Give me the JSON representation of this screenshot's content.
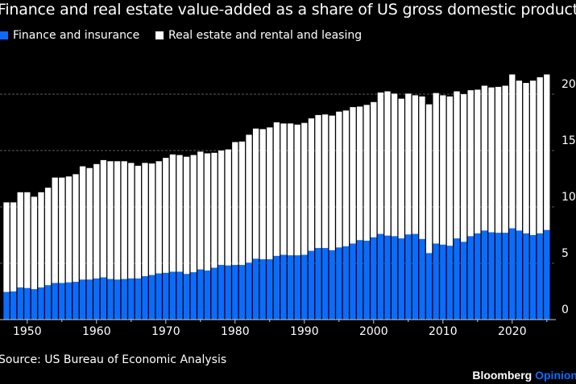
{
  "chart_data": {
    "type": "bar",
    "stacked": true,
    "title": "Finance and real estate value-added as a share of US gross domestic product",
    "xlabel": "",
    "ylabel": "",
    "ylim": [
      0,
      22
    ],
    "y_ticks": [
      "0",
      "5",
      "10",
      "15",
      "20%"
    ],
    "x_ticks": [
      "1950",
      "1960",
      "1970",
      "1980",
      "1990",
      "2000",
      "2010",
      "2020"
    ],
    "grid": true,
    "legend_placement": "top-left",
    "x": [
      1947,
      1948,
      1949,
      1950,
      1951,
      1952,
      1953,
      1954,
      1955,
      1956,
      1957,
      1958,
      1959,
      1960,
      1961,
      1962,
      1963,
      1964,
      1965,
      1966,
      1967,
      1968,
      1969,
      1970,
      1971,
      1972,
      1973,
      1974,
      1975,
      1976,
      1977,
      1978,
      1979,
      1980,
      1981,
      1982,
      1983,
      1984,
      1985,
      1986,
      1987,
      1988,
      1989,
      1990,
      1991,
      1992,
      1993,
      1994,
      1995,
      1996,
      1997,
      1998,
      1999,
      2000,
      2001,
      2002,
      2003,
      2004,
      2005,
      2006,
      2007,
      2008,
      2009,
      2010,
      2011,
      2012,
      2013,
      2014,
      2015,
      2016,
      2017,
      2018,
      2019,
      2020,
      2021,
      2022,
      2023,
      2024,
      2025
    ],
    "series": [
      {
        "name": "Finance and insurance",
        "color": "#0A6CFF",
        "values": [
          2.45,
          2.5,
          2.85,
          2.8,
          2.7,
          2.85,
          3.05,
          3.25,
          3.25,
          3.3,
          3.35,
          3.55,
          3.55,
          3.65,
          3.75,
          3.6,
          3.55,
          3.6,
          3.65,
          3.65,
          3.85,
          3.95,
          4.1,
          4.15,
          4.25,
          4.25,
          4.05,
          4.2,
          4.45,
          4.35,
          4.6,
          4.85,
          4.8,
          4.85,
          4.85,
          5.05,
          5.4,
          5.35,
          5.35,
          5.65,
          5.75,
          5.7,
          5.7,
          5.75,
          6.1,
          6.35,
          6.35,
          6.15,
          6.4,
          6.5,
          6.75,
          7.05,
          7.0,
          7.3,
          7.6,
          7.45,
          7.4,
          7.2,
          7.55,
          7.6,
          7.15,
          5.9,
          6.75,
          6.65,
          6.55,
          7.2,
          6.9,
          7.4,
          7.65,
          7.9,
          7.75,
          7.7,
          7.7,
          8.1,
          7.9,
          7.65,
          7.5,
          7.65,
          7.95
        ]
      },
      {
        "name": "Real estate and rental and leasing",
        "color": "#FFFFFF",
        "values": [
          7.95,
          7.9,
          8.45,
          8.5,
          8.2,
          8.45,
          8.65,
          9.35,
          9.35,
          9.4,
          9.55,
          10.05,
          9.9,
          10.15,
          10.4,
          10.45,
          10.5,
          10.45,
          10.25,
          10.0,
          10.05,
          9.9,
          9.95,
          10.2,
          10.4,
          10.35,
          10.4,
          10.4,
          10.45,
          10.4,
          10.2,
          10.15,
          10.3,
          10.9,
          10.95,
          11.35,
          11.55,
          11.55,
          11.7,
          11.85,
          11.65,
          11.7,
          11.6,
          11.7,
          11.75,
          11.8,
          11.85,
          11.95,
          12.05,
          12.05,
          12.1,
          11.85,
          12.05,
          12.0,
          12.55,
          12.8,
          12.65,
          12.4,
          12.5,
          12.3,
          12.65,
          13.2,
          13.35,
          13.25,
          13.25,
          13.05,
          13.1,
          12.95,
          12.75,
          12.85,
          12.85,
          12.95,
          13.05,
          13.65,
          13.3,
          13.35,
          13.7,
          13.85,
          13.8
        ]
      }
    ],
    "source": "Source: US Bureau of Economic Analysis"
  },
  "brand": {
    "name": "Bloomberg",
    "suffix": "Opinion",
    "suffix_color": "#0A6CFF"
  },
  "colors": {
    "background": "#000000",
    "grid": "#555555"
  }
}
